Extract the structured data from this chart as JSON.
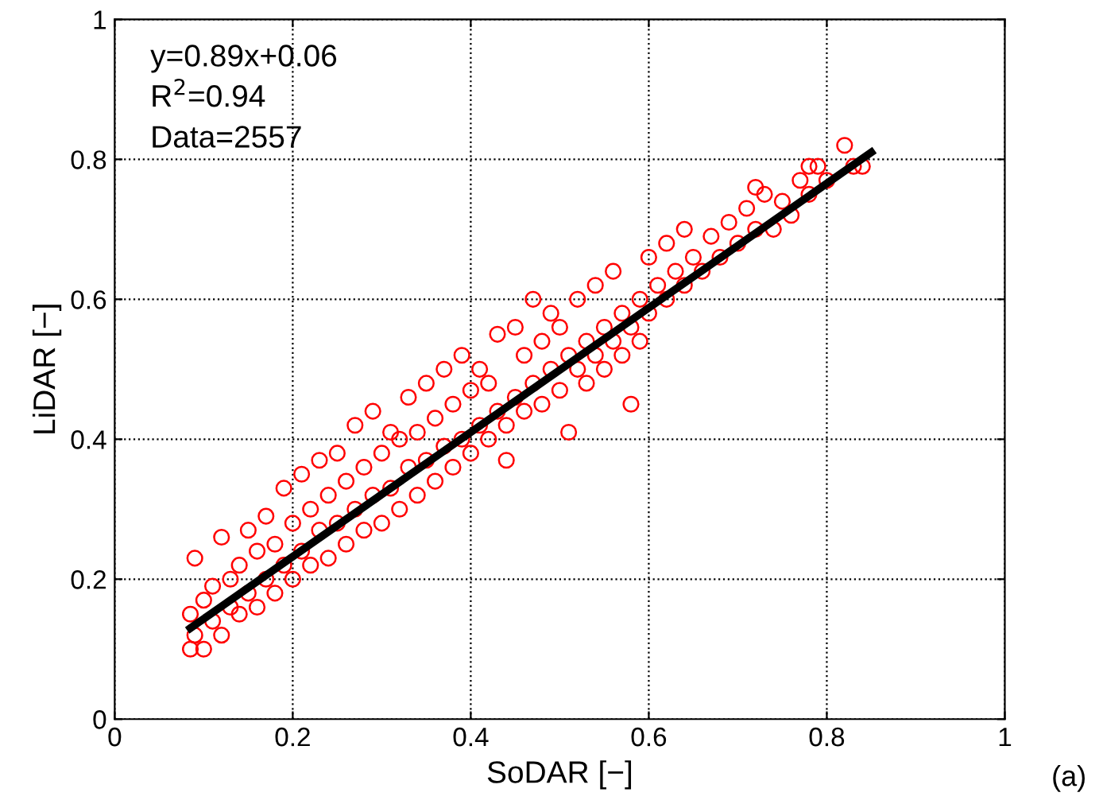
{
  "chart_data": {
    "type": "scatter",
    "xlabel": "SoDAR [−]",
    "ylabel": "LiDAR [−]",
    "xlim": [
      0,
      1
    ],
    "ylim": [
      0,
      1
    ],
    "xticks": [
      0,
      0.2,
      0.4,
      0.6,
      0.8,
      1
    ],
    "yticks": [
      0,
      0.2,
      0.4,
      0.6,
      0.8,
      1
    ],
    "grid": true,
    "annotations": [
      "y=0.89x+0.06",
      "R$^{2}$=0.94",
      "Data=2557",
      "(a)"
    ],
    "series": [
      {
        "color": "#ff0000",
        "marker": "circle",
        "x": [
          0.085,
          0.085,
          0.09,
          0.09,
          0.1,
          0.1,
          0.11,
          0.11,
          0.12,
          0.12,
          0.13,
          0.13,
          0.14,
          0.14,
          0.15,
          0.15,
          0.16,
          0.16,
          0.17,
          0.17,
          0.18,
          0.18,
          0.19,
          0.19,
          0.2,
          0.2,
          0.21,
          0.21,
          0.22,
          0.22,
          0.23,
          0.23,
          0.24,
          0.24,
          0.25,
          0.25,
          0.26,
          0.26,
          0.27,
          0.27,
          0.28,
          0.28,
          0.29,
          0.29,
          0.3,
          0.3,
          0.31,
          0.31,
          0.32,
          0.32,
          0.33,
          0.33,
          0.34,
          0.34,
          0.35,
          0.35,
          0.36,
          0.36,
          0.37,
          0.37,
          0.38,
          0.38,
          0.39,
          0.39,
          0.4,
          0.4,
          0.41,
          0.41,
          0.42,
          0.42,
          0.43,
          0.43,
          0.44,
          0.44,
          0.45,
          0.45,
          0.46,
          0.46,
          0.47,
          0.47,
          0.48,
          0.48,
          0.49,
          0.49,
          0.5,
          0.5,
          0.51,
          0.51,
          0.52,
          0.52,
          0.53,
          0.53,
          0.54,
          0.54,
          0.55,
          0.55,
          0.56,
          0.56,
          0.57,
          0.57,
          0.58,
          0.58,
          0.59,
          0.59,
          0.6,
          0.6,
          0.61,
          0.62,
          0.62,
          0.63,
          0.64,
          0.64,
          0.65,
          0.66,
          0.67,
          0.68,
          0.69,
          0.7,
          0.71,
          0.72,
          0.73,
          0.74,
          0.75,
          0.76,
          0.77,
          0.78,
          0.79,
          0.8,
          0.82,
          0.83,
          0.84,
          0.78,
          0.72
        ],
        "values": [
          0.1,
          0.15,
          0.23,
          0.12,
          0.1,
          0.17,
          0.14,
          0.19,
          0.12,
          0.26,
          0.16,
          0.2,
          0.15,
          0.22,
          0.18,
          0.27,
          0.16,
          0.24,
          0.2,
          0.29,
          0.18,
          0.25,
          0.22,
          0.33,
          0.2,
          0.28,
          0.24,
          0.35,
          0.22,
          0.3,
          0.27,
          0.37,
          0.23,
          0.32,
          0.28,
          0.38,
          0.25,
          0.34,
          0.3,
          0.42,
          0.27,
          0.36,
          0.32,
          0.44,
          0.28,
          0.38,
          0.33,
          0.41,
          0.3,
          0.4,
          0.36,
          0.46,
          0.32,
          0.41,
          0.37,
          0.48,
          0.34,
          0.43,
          0.39,
          0.5,
          0.36,
          0.45,
          0.4,
          0.52,
          0.38,
          0.47,
          0.42,
          0.5,
          0.4,
          0.48,
          0.44,
          0.55,
          0.42,
          0.37,
          0.46,
          0.56,
          0.44,
          0.52,
          0.48,
          0.6,
          0.45,
          0.54,
          0.5,
          0.58,
          0.47,
          0.56,
          0.52,
          0.41,
          0.5,
          0.6,
          0.54,
          0.48,
          0.52,
          0.62,
          0.56,
          0.5,
          0.54,
          0.64,
          0.58,
          0.52,
          0.56,
          0.45,
          0.6,
          0.54,
          0.58,
          0.66,
          0.62,
          0.6,
          0.68,
          0.64,
          0.62,
          0.7,
          0.66,
          0.64,
          0.69,
          0.66,
          0.71,
          0.68,
          0.73,
          0.7,
          0.75,
          0.7,
          0.74,
          0.72,
          0.77,
          0.75,
          0.79,
          0.77,
          0.82,
          0.79,
          0.79,
          0.79,
          0.76
        ]
      },
      {
        "type": "line",
        "color": "#000000",
        "marker": "none",
        "x": [
          0.085,
          0.85
        ],
        "values": [
          0.13,
          0.81
        ]
      }
    ]
  }
}
